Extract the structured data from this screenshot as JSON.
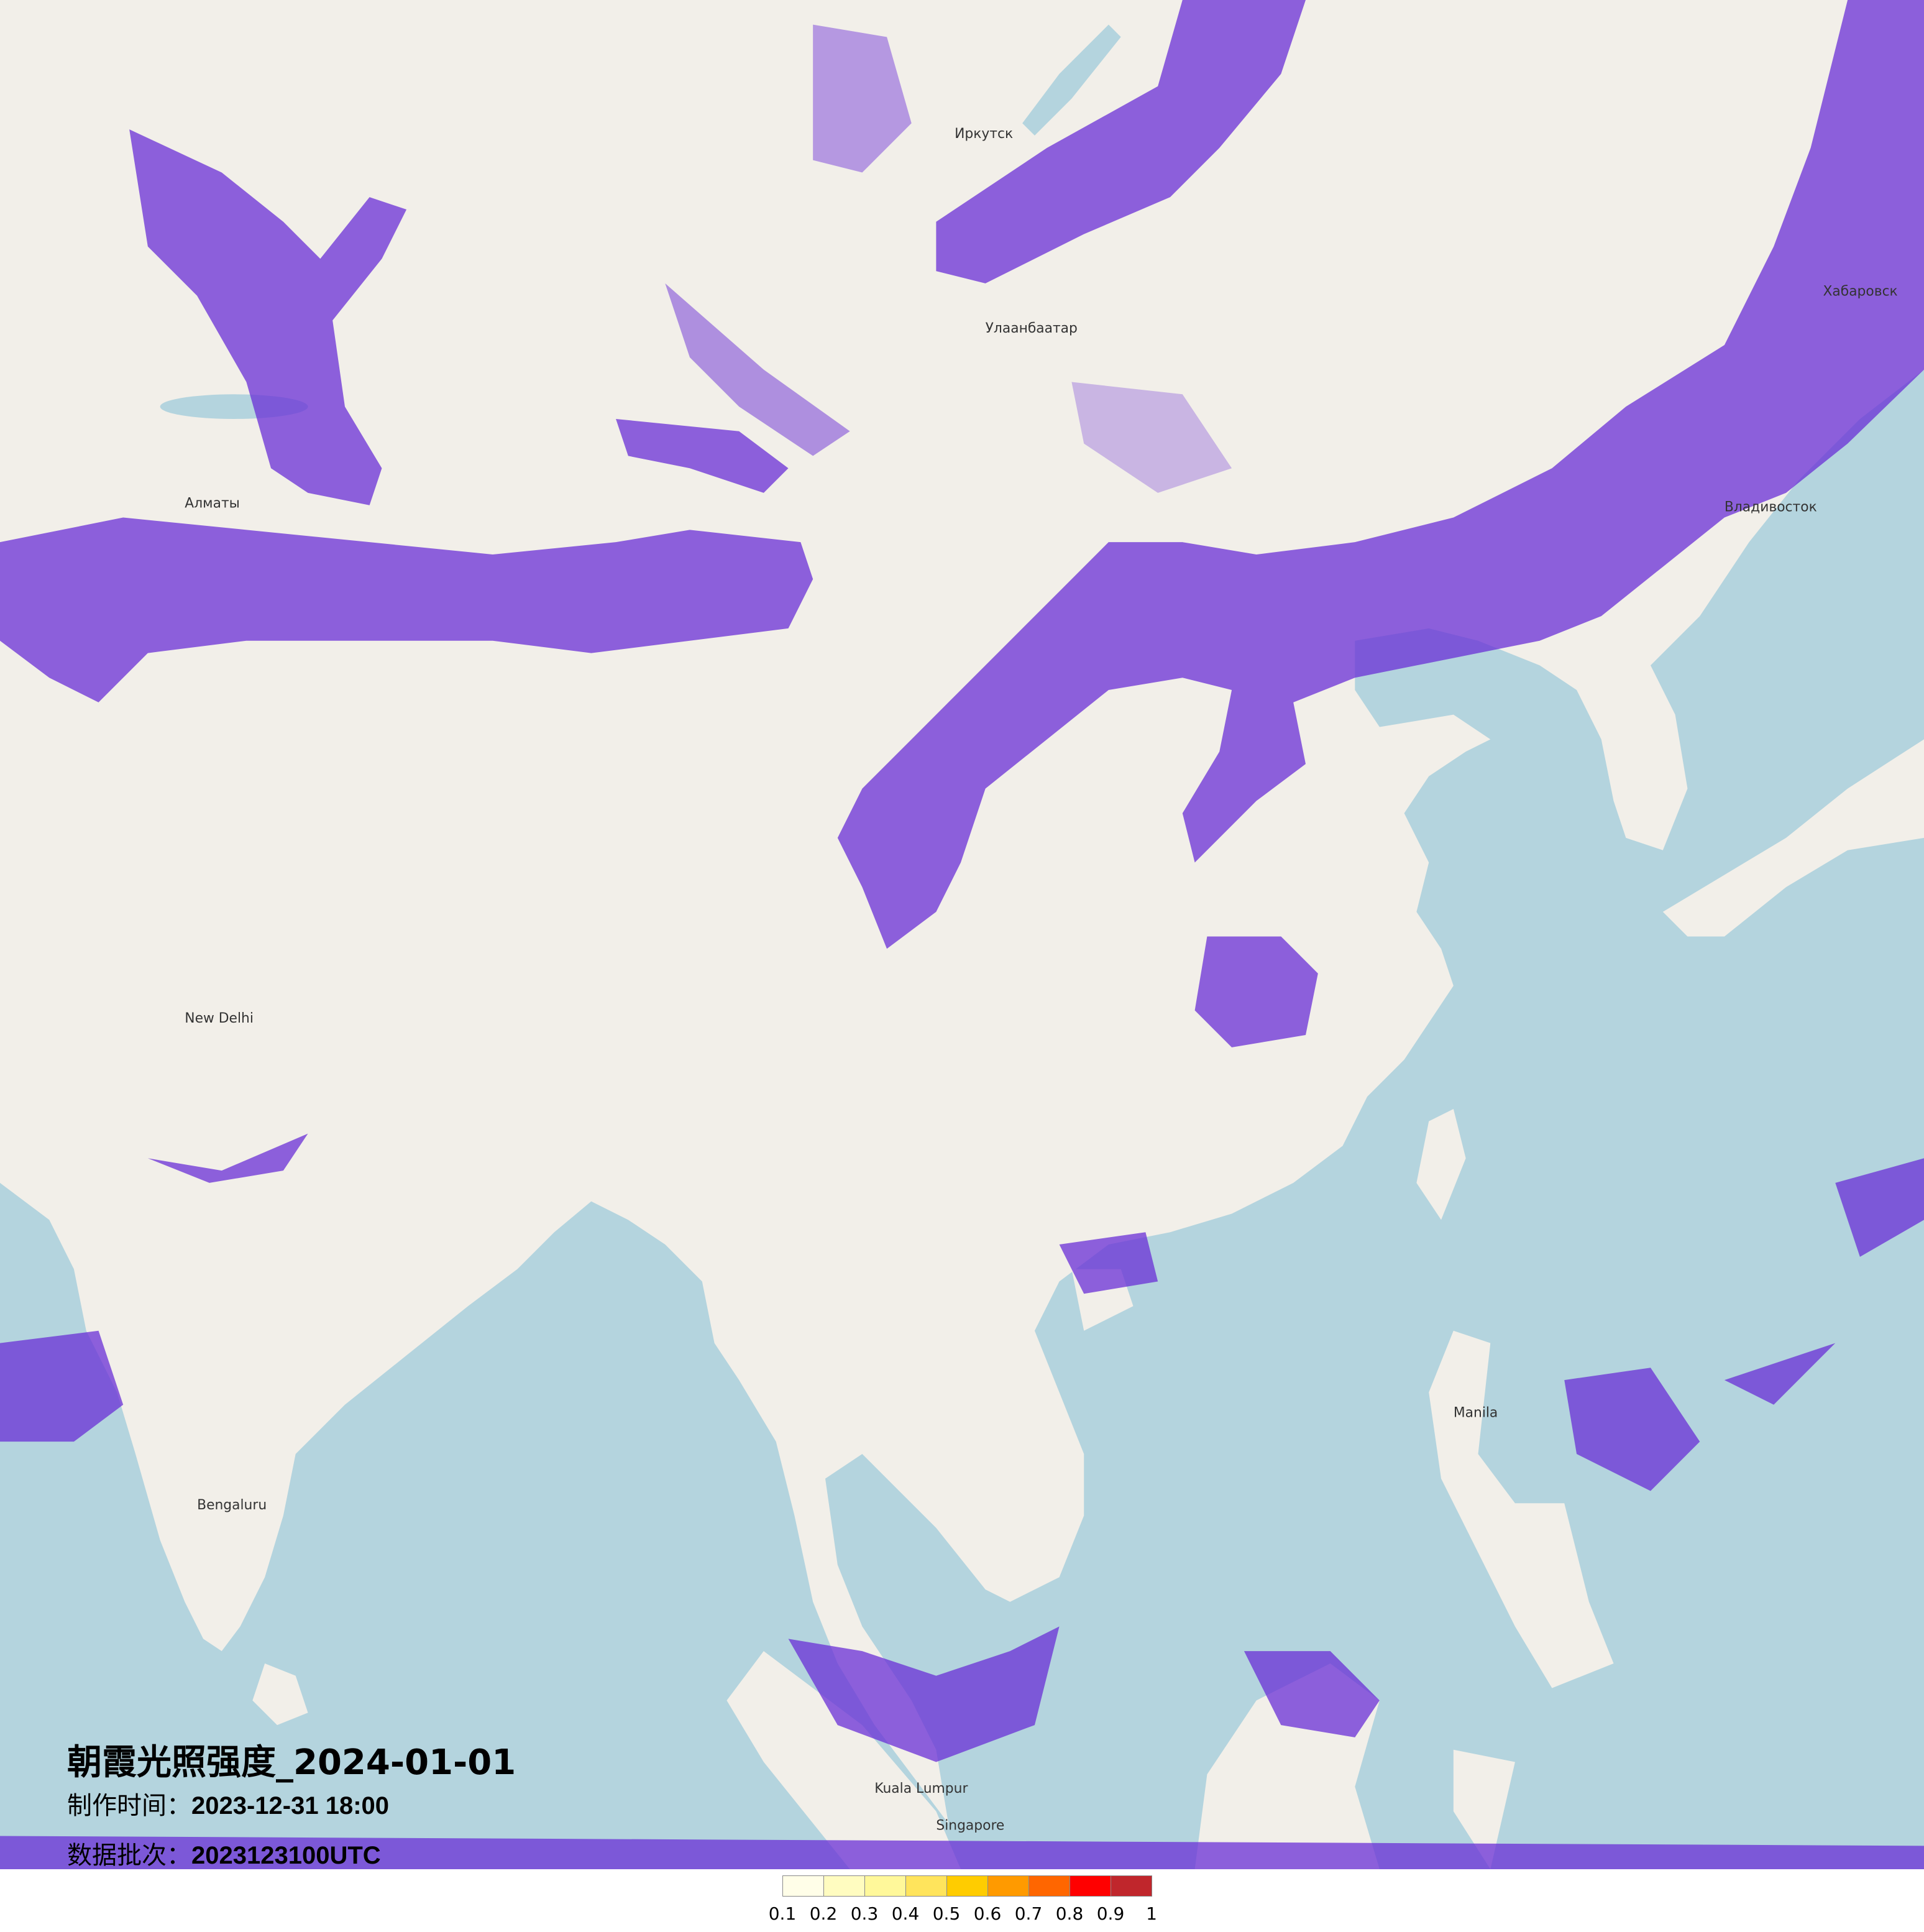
{
  "title": "朝霞光照强度_2024-01-01",
  "production_time": {
    "label": "制作时间：",
    "value": "2023-12-31 18:00"
  },
  "data_batch": {
    "label": "数据批次：",
    "value": "2023123100UTC"
  },
  "colors": {
    "land": "#f2efe9",
    "sea": "#b4d4de",
    "intensity_overlay": "#6a2fd6"
  },
  "legend": {
    "ticks": [
      "0.1",
      "0.2",
      "0.3",
      "0.4",
      "0.5",
      "0.6",
      "0.7",
      "0.8",
      "0.9",
      "1"
    ],
    "colors": [
      "#fffee8",
      "#fffcc0",
      "#fff89a",
      "#ffe45c",
      "#ffcc00",
      "#ff9a00",
      "#ff6600",
      "#ff0000",
      "#c0262c"
    ]
  },
  "cities": [
    "Улаанбаатар",
    "Хабаровск",
    "Владивосток",
    "New Delhi",
    "Bengaluru",
    "Singapore",
    "Manila",
    "Kuala Lumpur",
    "Алматы",
    "Иркутск"
  ]
}
